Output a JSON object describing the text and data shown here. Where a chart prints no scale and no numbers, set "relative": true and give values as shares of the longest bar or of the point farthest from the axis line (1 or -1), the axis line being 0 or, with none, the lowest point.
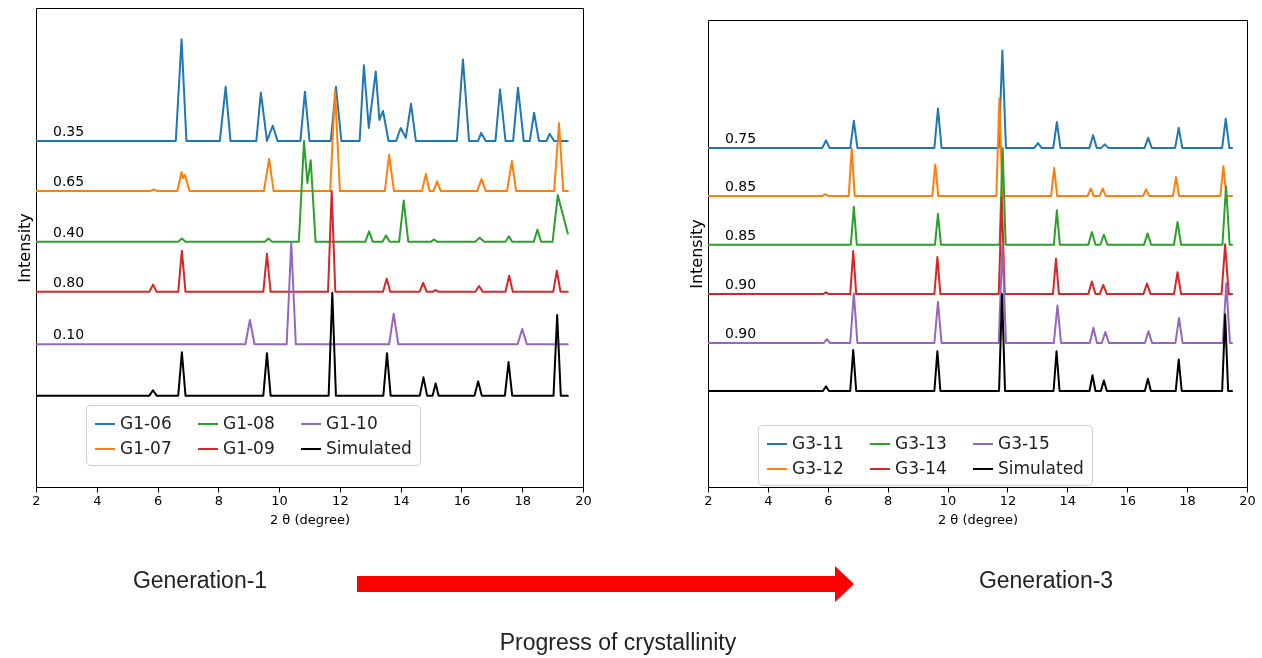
{
  "chart_data": [
    {
      "type": "line",
      "xlabel": "2 θ (degree)",
      "ylabel": "Intensity",
      "relative": true,
      "xlim": [
        2,
        20
      ],
      "xticks": [
        2,
        4,
        6,
        8,
        10,
        12,
        14,
        16,
        18,
        20
      ],
      "legend": "bottom",
      "series": [
        {
          "name": "G1-06",
          "color": "#1f77b4",
          "x": [
            2,
            6.6,
            6.79,
            6.95,
            8.05,
            8.24,
            8.4,
            9.25,
            9.4,
            9.6,
            9.79,
            9.95,
            10.7,
            10.85,
            11.0,
            11.7,
            11.87,
            12.05,
            12.65,
            12.79,
            12.95,
            13.18,
            13.3,
            13.42,
            13.6,
            13.85,
            14.0,
            14.17,
            14.34,
            14.5,
            15.85,
            16.05,
            16.25,
            16.55,
            16.65,
            16.8,
            17.12,
            17.27,
            17.45,
            17.7,
            17.86,
            18.05,
            18.25,
            18.39,
            18.55,
            18.8,
            18.9,
            19.05,
            19.5
          ],
          "values": [
            0.773,
            0.773,
            1.0,
            0.773,
            0.773,
            0.894,
            0.773,
            0.773,
            0.881,
            0.773,
            0.807,
            0.773,
            0.773,
            0.883,
            0.773,
            0.773,
            0.894,
            0.773,
            0.773,
            0.942,
            0.802,
            0.928,
            0.82,
            0.84,
            0.773,
            0.773,
            0.802,
            0.78,
            0.856,
            0.773,
            0.773,
            0.955,
            0.773,
            0.773,
            0.791,
            0.773,
            0.773,
            0.888,
            0.773,
            0.773,
            0.892,
            0.773,
            0.773,
            0.836,
            0.773,
            0.773,
            0.789,
            0.773,
            0.773
          ]
        },
        {
          "name": "G1-07",
          "color": "#ff7f0e",
          "x": [
            2,
            5.75,
            5.88,
            6.0,
            6.65,
            6.79,
            6.84,
            6.9,
            7.05,
            9.5,
            9.67,
            9.82,
            11.68,
            11.84,
            12.0,
            13.48,
            13.62,
            13.78,
            14.7,
            14.83,
            14.95,
            15.08,
            15.2,
            15.32,
            16.52,
            16.66,
            16.8,
            17.5,
            17.66,
            17.8,
            19.05,
            19.21,
            19.35,
            19.5
          ],
          "values": [
            0.661,
            0.661,
            0.665,
            0.661,
            0.661,
            0.703,
            0.69,
            0.697,
            0.661,
            0.661,
            0.733,
            0.661,
            0.661,
            0.885,
            0.661,
            0.661,
            0.742,
            0.661,
            0.661,
            0.699,
            0.661,
            0.661,
            0.683,
            0.661,
            0.661,
            0.688,
            0.661,
            0.661,
            0.728,
            0.661,
            0.661,
            0.813,
            0.661,
            0.661
          ]
        },
        {
          "name": "G1-08",
          "color": "#2ca02c",
          "x": [
            2,
            6.68,
            6.8,
            6.92,
            9.53,
            9.65,
            9.77,
            10.65,
            10.82,
            10.93,
            11.04,
            11.2,
            12.84,
            12.96,
            13.08,
            13.4,
            13.52,
            13.64,
            13.95,
            14.1,
            14.25,
            15.0,
            15.1,
            15.2,
            16.45,
            16.6,
            16.75,
            17.45,
            17.56,
            17.67,
            18.38,
            18.5,
            18.62,
            19.0,
            19.17,
            19.5
          ],
          "values": [
            0.548,
            0.548,
            0.555,
            0.548,
            0.548,
            0.555,
            0.548,
            0.548,
            0.773,
            0.679,
            0.73,
            0.548,
            0.548,
            0.571,
            0.548,
            0.548,
            0.562,
            0.548,
            0.548,
            0.64,
            0.548,
            0.548,
            0.553,
            0.548,
            0.548,
            0.557,
            0.548,
            0.548,
            0.56,
            0.548,
            0.548,
            0.575,
            0.548,
            0.548,
            0.652,
            0.566
          ]
        },
        {
          "name": "G1-09",
          "color": "#d62728",
          "x": [
            2,
            5.73,
            5.85,
            5.97,
            6.68,
            6.8,
            6.92,
            9.48,
            9.6,
            9.72,
            11.61,
            11.73,
            11.85,
            13.42,
            13.54,
            13.66,
            14.62,
            14.74,
            14.86,
            15.05,
            15.15,
            15.25,
            16.46,
            16.58,
            16.7,
            17.45,
            17.57,
            17.69,
            19.02,
            19.14,
            19.26,
            19.5
          ],
          "values": [
            0.436,
            0.436,
            0.452,
            0.436,
            0.436,
            0.528,
            0.436,
            0.436,
            0.521,
            0.436,
            0.436,
            0.661,
            0.436,
            0.436,
            0.465,
            0.436,
            0.436,
            0.456,
            0.436,
            0.436,
            0.44,
            0.436,
            0.436,
            0.449,
            0.436,
            0.436,
            0.472,
            0.436,
            0.436,
            0.483,
            0.436,
            0.436
          ]
        },
        {
          "name": "G1-10",
          "color": "#9467bd",
          "x": [
            2,
            8.89,
            9.04,
            9.19,
            10.25,
            10.4,
            10.55,
            13.62,
            13.77,
            13.92,
            17.85,
            18.0,
            18.15,
            19.5
          ],
          "values": [
            0.319,
            0.319,
            0.373,
            0.319,
            0.319,
            0.546,
            0.319,
            0.319,
            0.387,
            0.319,
            0.319,
            0.353,
            0.319,
            0.319
          ]
        },
        {
          "name": "Simulated",
          "color": "#000000",
          "x": [
            2,
            5.73,
            5.85,
            5.97,
            6.68,
            6.8,
            6.92,
            9.48,
            9.6,
            9.72,
            11.63,
            11.75,
            11.87,
            13.43,
            13.55,
            13.67,
            14.63,
            14.75,
            14.87,
            15.05,
            15.15,
            15.25,
            16.43,
            16.55,
            16.67,
            17.43,
            17.55,
            17.67,
            19.03,
            19.15,
            19.27,
            19.5
          ],
          "values": [
            0.204,
            0.204,
            0.216,
            0.204,
            0.204,
            0.301,
            0.204,
            0.204,
            0.299,
            0.204,
            0.204,
            0.434,
            0.204,
            0.204,
            0.299,
            0.204,
            0.204,
            0.245,
            0.204,
            0.204,
            0.231,
            0.204,
            0.204,
            0.236,
            0.204,
            0.204,
            0.279,
            0.204,
            0.204,
            0.384,
            0.204,
            0.204
          ]
        }
      ],
      "annotations": [
        "0.35",
        "0.65",
        "0.40",
        "0.80",
        "0.10",
        "Generation-1",
        "Progress of crystallinity"
      ]
    },
    {
      "type": "line",
      "xlabel": "2 θ (degree)",
      "ylabel": "Intensity",
      "relative": true,
      "xlim": [
        2,
        20
      ],
      "xticks": [
        2,
        4,
        6,
        8,
        10,
        12,
        14,
        16,
        18,
        20
      ],
      "legend": "bottom",
      "series": [
        {
          "name": "G3-11",
          "color": "#1f77b4",
          "x": [
            2,
            5.82,
            5.94,
            6.06,
            6.75,
            6.87,
            6.99,
            9.56,
            9.68,
            9.8,
            11.71,
            11.83,
            11.95,
            12.9,
            13.02,
            13.14,
            13.53,
            13.65,
            13.77,
            14.74,
            14.86,
            14.98,
            15.13,
            15.25,
            15.37,
            16.58,
            16.7,
            16.82,
            17.6,
            17.72,
            17.84,
            19.17,
            19.29,
            19.41,
            19.5
          ],
          "values": [
            0.777,
            0.777,
            0.794,
            0.777,
            0.777,
            0.839,
            0.777,
            0.777,
            0.867,
            0.777,
            0.777,
            1.0,
            0.777,
            0.777,
            0.788,
            0.777,
            0.777,
            0.836,
            0.777,
            0.777,
            0.806,
            0.777,
            0.777,
            0.785,
            0.777,
            0.777,
            0.8,
            0.777,
            0.777,
            0.823,
            0.777,
            0.777,
            0.844,
            0.777,
            0.777
          ]
        },
        {
          "name": "G3-12",
          "color": "#ff7f0e",
          "x": [
            2,
            5.82,
            5.92,
            6.02,
            6.7,
            6.8,
            6.9,
            9.49,
            9.59,
            9.69,
            11.63,
            11.73,
            11.83,
            13.46,
            13.56,
            13.66,
            14.68,
            14.78,
            14.88,
            15.08,
            15.18,
            15.28,
            16.53,
            16.63,
            16.73,
            17.53,
            17.63,
            17.73,
            19.11,
            19.21,
            19.31,
            19.5
          ],
          "values": [
            0.667,
            0.667,
            0.671,
            0.667,
            0.667,
            0.776,
            0.667,
            0.667,
            0.739,
            0.667,
            0.667,
            0.89,
            0.667,
            0.667,
            0.731,
            0.667,
            0.667,
            0.684,
            0.667,
            0.667,
            0.684,
            0.667,
            0.667,
            0.682,
            0.667,
            0.667,
            0.71,
            0.667,
            0.667,
            0.735,
            0.667,
            0.667
          ]
        },
        {
          "name": "G3-13",
          "color": "#2ca02c",
          "x": [
            2,
            6.77,
            6.87,
            6.97,
            9.58,
            9.68,
            9.78,
            11.74,
            11.84,
            11.94,
            13.55,
            13.65,
            13.75,
            14.7,
            14.82,
            14.94,
            15.1,
            15.22,
            15.34,
            16.56,
            16.68,
            16.8,
            17.56,
            17.68,
            17.8,
            19.18,
            19.3,
            19.42,
            19.5
          ],
          "values": [
            0.555,
            0.555,
            0.642,
            0.555,
            0.555,
            0.626,
            0.555,
            0.555,
            0.777,
            0.555,
            0.555,
            0.634,
            0.555,
            0.555,
            0.584,
            0.555,
            0.555,
            0.578,
            0.555,
            0.555,
            0.581,
            0.555,
            0.555,
            0.607,
            0.555,
            0.555,
            0.689,
            0.555,
            0.555
          ]
        },
        {
          "name": "G3-14",
          "color": "#d62728",
          "x": [
            2,
            5.84,
            5.94,
            6.04,
            6.75,
            6.85,
            6.95,
            9.56,
            9.66,
            9.76,
            11.71,
            11.81,
            11.91,
            13.52,
            13.62,
            13.72,
            14.7,
            14.82,
            14.94,
            15.08,
            15.2,
            15.32,
            16.54,
            16.66,
            16.78,
            17.56,
            17.68,
            17.8,
            19.15,
            19.27,
            19.39,
            19.5
          ],
          "values": [
            0.442,
            0.442,
            0.446,
            0.442,
            0.442,
            0.541,
            0.442,
            0.442,
            0.527,
            0.442,
            0.442,
            0.664,
            0.442,
            0.442,
            0.523,
            0.442,
            0.442,
            0.471,
            0.442,
            0.442,
            0.463,
            0.442,
            0.442,
            0.466,
            0.442,
            0.442,
            0.492,
            0.442,
            0.442,
            0.556,
            0.442,
            0.442
          ]
        },
        {
          "name": "G3-15",
          "color": "#9467bd",
          "x": [
            2,
            5.87,
            5.97,
            6.07,
            6.75,
            6.87,
            6.99,
            9.56,
            9.68,
            9.8,
            11.71,
            11.83,
            11.95,
            13.55,
            13.67,
            13.79,
            14.75,
            14.87,
            14.99,
            15.15,
            15.27,
            15.39,
            16.59,
            16.71,
            16.83,
            17.61,
            17.73,
            17.85,
            19.19,
            19.31,
            19.43,
            19.5
          ],
          "values": [
            0.33,
            0.33,
            0.339,
            0.33,
            0.33,
            0.444,
            0.33,
            0.33,
            0.424,
            0.33,
            0.33,
            0.555,
            0.33,
            0.33,
            0.416,
            0.33,
            0.33,
            0.365,
            0.33,
            0.33,
            0.355,
            0.33,
            0.33,
            0.357,
            0.33,
            0.33,
            0.387,
            0.33,
            0.33,
            0.467,
            0.33,
            0.33
          ]
        },
        {
          "name": "Simulated",
          "color": "#000000",
          "x": [
            2,
            5.84,
            5.94,
            6.04,
            6.75,
            6.85,
            6.95,
            9.56,
            9.66,
            9.76,
            11.72,
            11.82,
            11.92,
            13.54,
            13.64,
            13.74,
            14.74,
            14.84,
            14.94,
            15.12,
            15.22,
            15.32,
            16.59,
            16.69,
            16.79,
            17.62,
            17.72,
            17.82,
            19.17,
            19.27,
            19.37,
            19.5
          ],
          "values": [
            0.22,
            0.22,
            0.231,
            0.22,
            0.22,
            0.314,
            0.22,
            0.22,
            0.311,
            0.22,
            0.22,
            0.442,
            0.22,
            0.22,
            0.311,
            0.22,
            0.22,
            0.256,
            0.22,
            0.22,
            0.244,
            0.22,
            0.22,
            0.248,
            0.22,
            0.22,
            0.292,
            0.22,
            0.22,
            0.395,
            0.22,
            0.22
          ]
        }
      ],
      "annotations": [
        "0.75",
        "0.85",
        "0.85",
        "0.90",
        "0.90",
        "Generation-3"
      ]
    }
  ]
}
